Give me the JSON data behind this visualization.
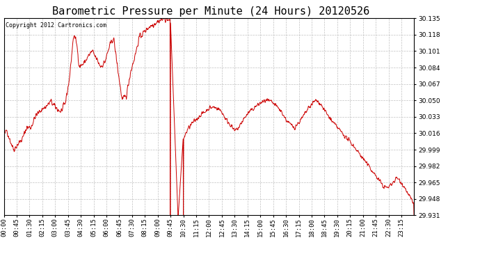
{
  "title": "Barometric Pressure per Minute (24 Hours) 20120526",
  "copyright": "Copyright 2012 Cartronics.com",
  "line_color": "#cc0000",
  "background_color": "#ffffff",
  "plot_bg_color": "#ffffff",
  "grid_color": "#c0c0c0",
  "ylim": [
    29.931,
    30.135
  ],
  "yticks": [
    29.931,
    29.948,
    29.965,
    29.982,
    29.999,
    30.016,
    30.033,
    30.05,
    30.067,
    30.084,
    30.101,
    30.118,
    30.135
  ],
  "xtick_labels": [
    "00:00",
    "00:45",
    "01:30",
    "02:15",
    "03:00",
    "03:45",
    "04:30",
    "05:15",
    "06:00",
    "06:45",
    "07:30",
    "08:15",
    "09:00",
    "09:45",
    "10:30",
    "11:15",
    "12:00",
    "12:45",
    "13:30",
    "14:15",
    "15:00",
    "15:45",
    "16:30",
    "17:15",
    "18:00",
    "18:45",
    "19:30",
    "20:15",
    "21:00",
    "21:45",
    "22:30",
    "23:15"
  ],
  "title_fontsize": 11,
  "tick_fontsize": 6.5,
  "copyright_fontsize": 6
}
